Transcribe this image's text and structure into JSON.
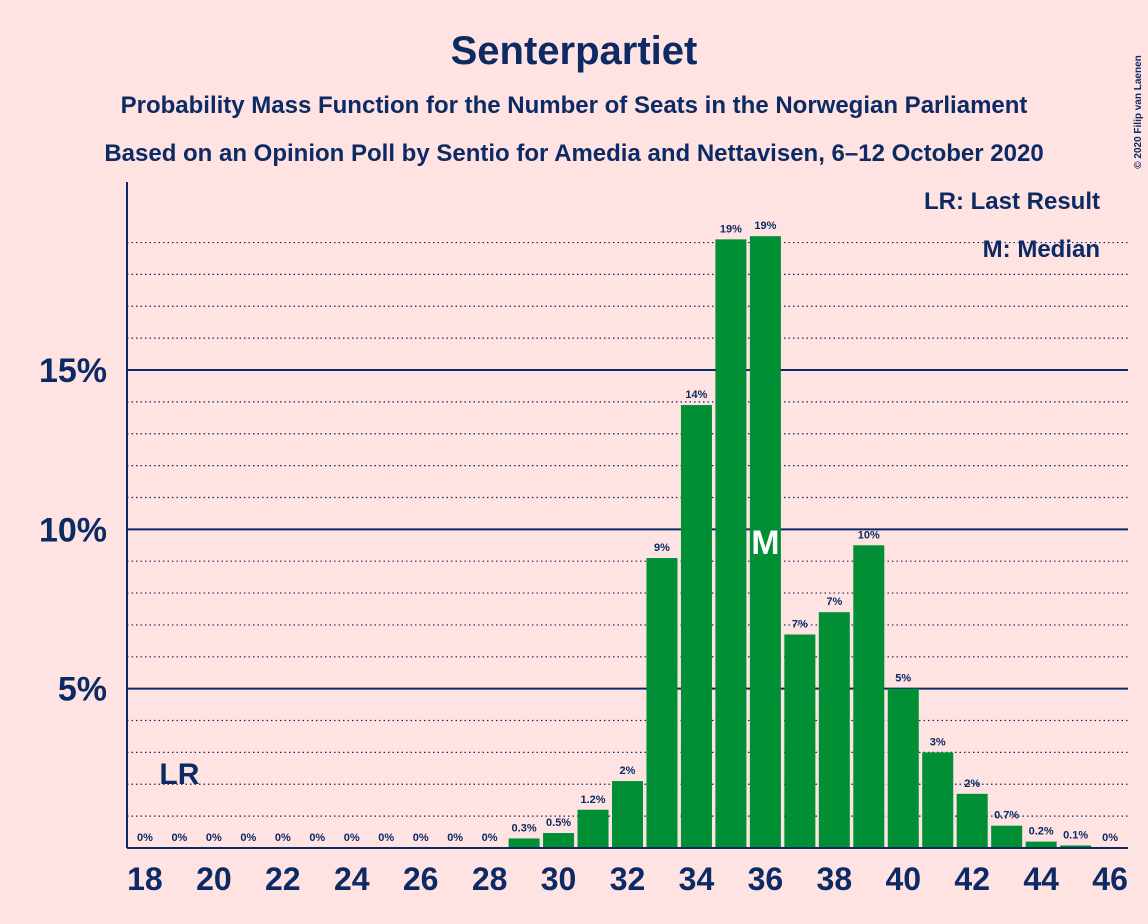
{
  "chart_data": {
    "type": "bar",
    "title": "Senterpartiet",
    "subtitle": "Probability Mass Function for the Number of Seats in the Norwegian Parliament",
    "subtitle2": "Based on an Opinion Poll by Sentio for Amedia and Nettavisen, 6–12 October 2020",
    "credit": "© 2020 Filip van Laenen",
    "x": [
      18,
      19,
      20,
      21,
      22,
      23,
      24,
      25,
      26,
      27,
      28,
      29,
      30,
      31,
      32,
      33,
      34,
      35,
      36,
      37,
      38,
      39,
      40,
      41,
      42,
      43,
      44,
      45,
      46
    ],
    "values": [
      0,
      0,
      0,
      0,
      0,
      0,
      0,
      0,
      0,
      0,
      0,
      0.3,
      0.47,
      1.2,
      2.1,
      9.1,
      13.9,
      19.1,
      19.2,
      6.7,
      7.4,
      9.5,
      5.0,
      3.0,
      1.7,
      0.7,
      0.2,
      0.08,
      0
    ],
    "value_labels": [
      "0%",
      "0%",
      "0%",
      "0%",
      "0%",
      "0%",
      "0%",
      "0%",
      "0%",
      "0%",
      "0%",
      "0.3%",
      "0.5%",
      "1.2%",
      "2%",
      "9%",
      "14%",
      "19%",
      "19%",
      "7%",
      "7%",
      "10%",
      "5%",
      "3%",
      "2%",
      "0.7%",
      "0.2%",
      "0.1%",
      "0%"
    ],
    "color": "#008f35",
    "xlim": [
      17.48,
      46.52
    ],
    "xticks": [
      18,
      20,
      22,
      24,
      26,
      28,
      30,
      32,
      34,
      36,
      38,
      40,
      42,
      44,
      46
    ],
    "ylim": [
      0,
      20.9
    ],
    "yticks": [
      {
        "value": 5,
        "label": "5%"
      },
      {
        "value": 10,
        "label": "10%"
      },
      {
        "value": 15,
        "label": "15%"
      }
    ],
    "minor_yticks": [
      1,
      2,
      3,
      4,
      6,
      7,
      8,
      9,
      11,
      12,
      13,
      14,
      16,
      17,
      18,
      19
    ],
    "grid": true,
    "annotations": [
      {
        "x": 19,
        "label": "LR"
      },
      {
        "x": 36,
        "label": "M"
      }
    ],
    "legend": [
      "LR: Last Result",
      "M: Median"
    ]
  }
}
